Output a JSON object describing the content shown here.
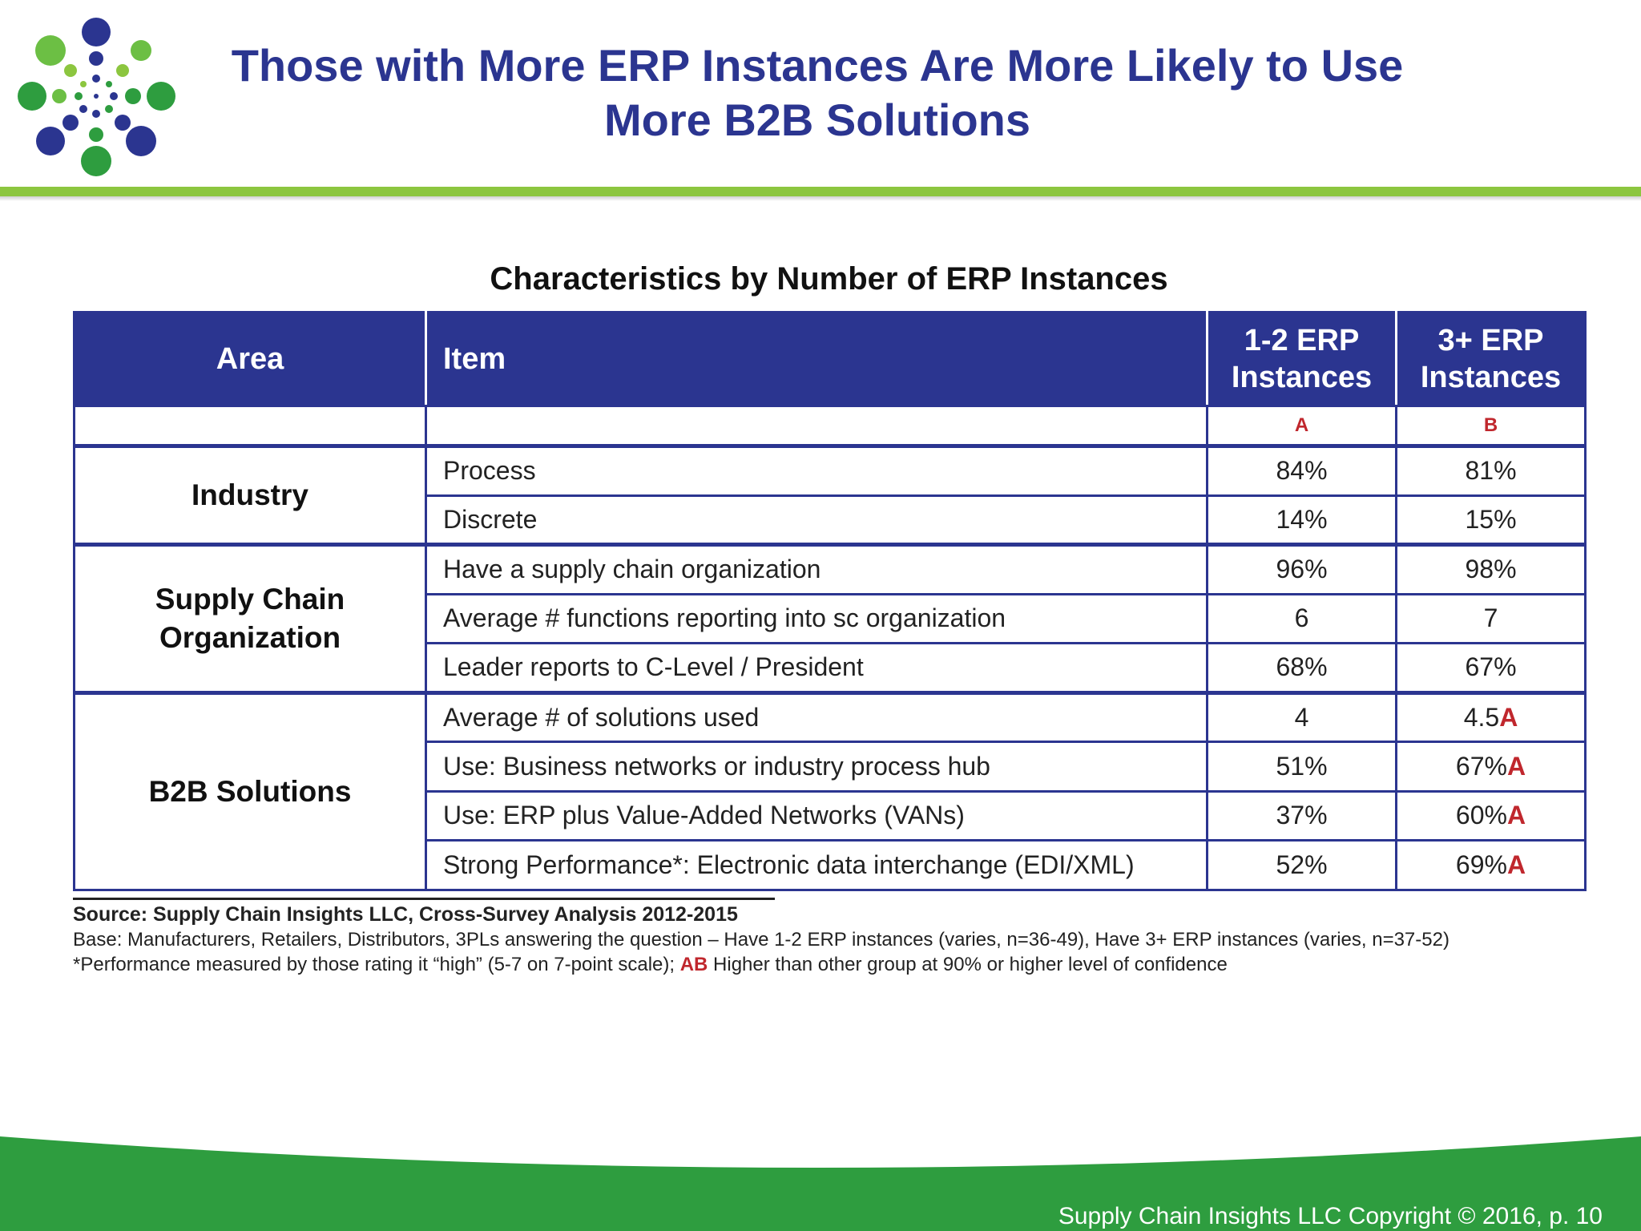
{
  "header": {
    "title_line1": "Those with More ERP Instances Are More Likely to Use",
    "title_line2": "More B2B Solutions",
    "logo_icon": "dot-burst-logo-icon",
    "colors": {
      "title": "#2b3590",
      "accent_green": "#8cc63f",
      "footer_green": "#2e9d3f"
    }
  },
  "table": {
    "title": "Characteristics by Number of ERP Instances",
    "headers": {
      "area": "Area",
      "item": "Item",
      "group_a": "1-2 ERP Instances",
      "group_b": "3+ ERP Instances"
    },
    "group_letters": {
      "a": "A",
      "b": "B"
    },
    "groups": [
      {
        "area": "Industry",
        "rows": [
          {
            "item": "Process",
            "a": "84%",
            "b": "81%",
            "b_sig": ""
          },
          {
            "item": "Discrete",
            "a": "14%",
            "b": "15%",
            "b_sig": ""
          }
        ]
      },
      {
        "area": "Supply Chain Organization",
        "rows": [
          {
            "item": "Have a supply chain organization",
            "a": "96%",
            "b": "98%",
            "b_sig": ""
          },
          {
            "item": "Average # functions reporting into sc organization",
            "a": "6",
            "b": "7",
            "b_sig": ""
          },
          {
            "item": "Leader reports to C-Level / President",
            "a": "68%",
            "b": "67%",
            "b_sig": ""
          }
        ]
      },
      {
        "area": "B2B Solutions",
        "rows": [
          {
            "item": "Average # of solutions used",
            "a": "4",
            "b": "4.5",
            "b_sig": "A"
          },
          {
            "item": "Use: Business networks or industry process hub",
            "a": "51%",
            "b": "67%",
            "b_sig": "A"
          },
          {
            "item": "Use: ERP plus Value-Added Networks (VANs)",
            "a": "37%",
            "b": "60%",
            "b_sig": "A"
          },
          {
            "item": "Strong Performance*: Electronic data interchange (EDI/XML)",
            "a": "52%",
            "b": "69%",
            "b_sig": "A"
          }
        ]
      }
    ]
  },
  "notes": {
    "source": "Source: Supply Chain Insights LLC, Cross-Survey Analysis 2012-2015",
    "base": "Base: Manufacturers, Retailers, Distributors, 3PLs answering the question – Have 1-2 ERP instances (varies, n=36-49), Have 3+ ERP instances (varies, n=37-52)",
    "footnote_pre": "*Performance measured by those rating it “high” (5-7 on 7-point scale); ",
    "footnote_letters": "AB",
    "footnote_post": " Higher than other group at 90% or higher level of confidence"
  },
  "footer": {
    "text": "Supply Chain Insights LLC Copyright © 2016, p. 10"
  }
}
